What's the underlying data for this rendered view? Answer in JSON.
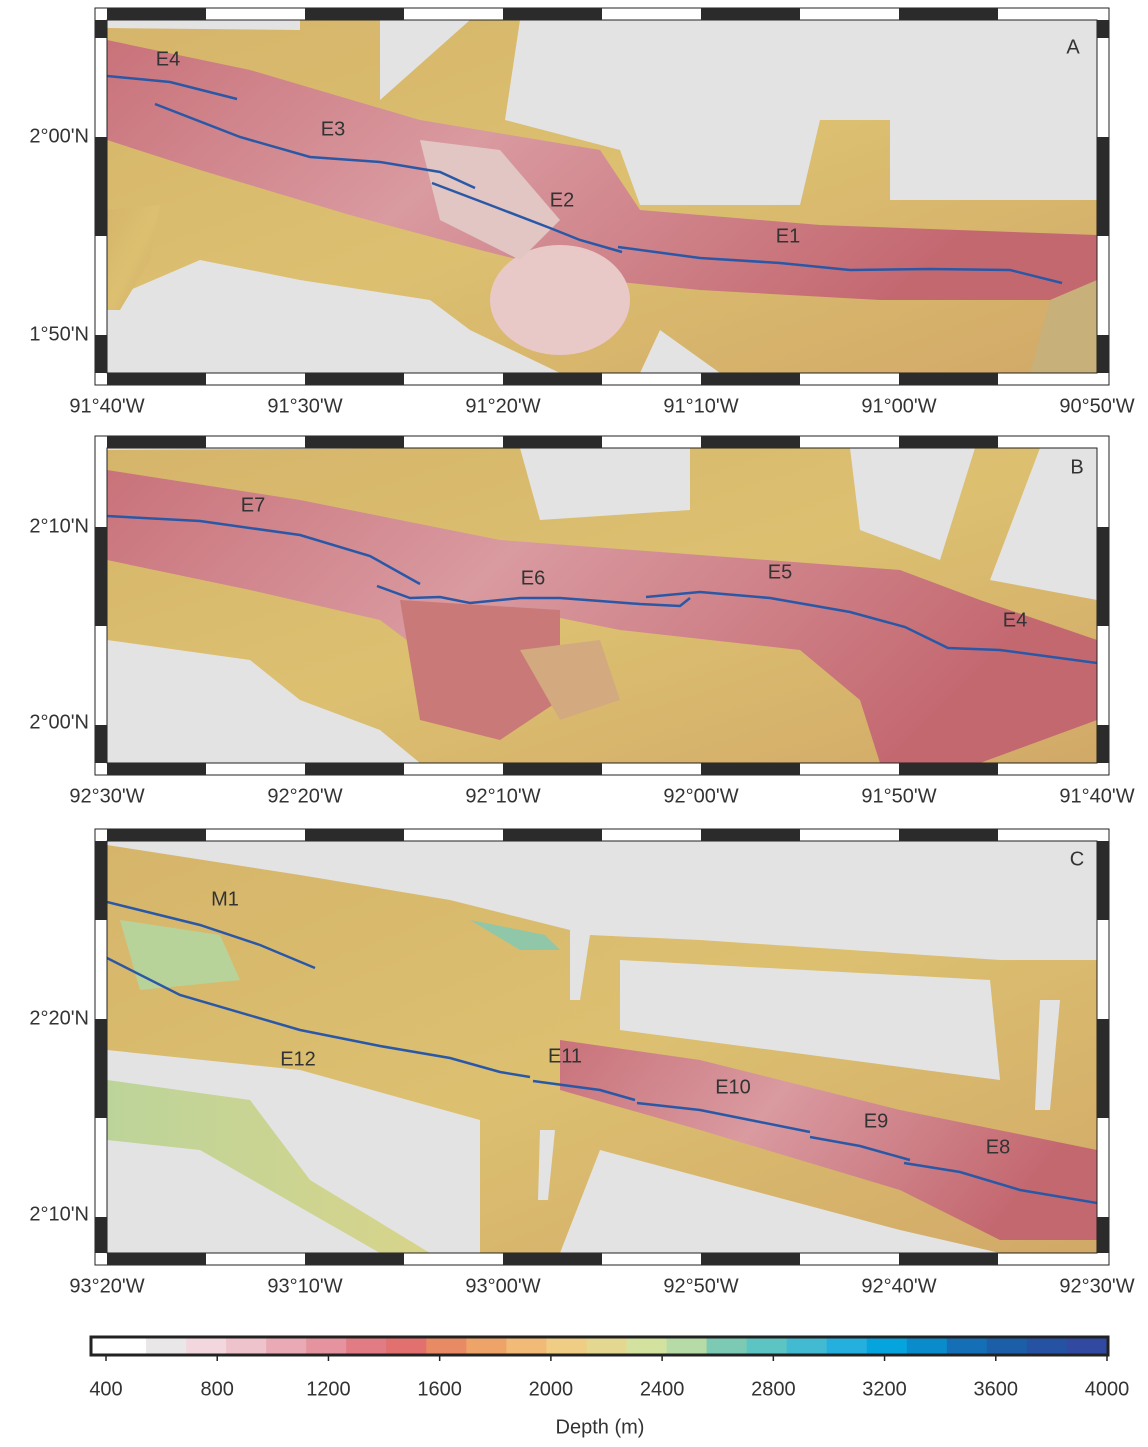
{
  "panels": [
    {
      "label": "A",
      "lon_labels": [
        "91°40'W",
        "91°30'W",
        "91°20'W",
        "91°10'W",
        "91°00'W",
        "90°50'W"
      ],
      "lat_labels": [
        "2°00'N",
        "1°50'N"
      ],
      "segments": [
        "E4",
        "E3",
        "E2",
        "E1"
      ]
    },
    {
      "label": "B",
      "lon_labels": [
        "92°30'W",
        "92°20'W",
        "92°10'W",
        "92°00'W",
        "91°50'W",
        "91°40'W"
      ],
      "lat_labels": [
        "2°10'N",
        "2°00'N"
      ],
      "segments": [
        "E7",
        "E6",
        "E5",
        "E4"
      ]
    },
    {
      "label": "C",
      "lon_labels": [
        "93°20'W",
        "93°10'W",
        "93°00'W",
        "92°50'W",
        "92°40'W",
        "92°30'W"
      ],
      "lat_labels": [
        "2°20'N",
        "2°10'N"
      ],
      "segments": [
        "M1",
        "E12",
        "E11",
        "E10",
        "E9",
        "E8"
      ]
    }
  ],
  "colorbar": {
    "title": "Depth (m)",
    "range": [
      400,
      4000
    ],
    "ticks": [
      400,
      800,
      1200,
      1600,
      2000,
      2400,
      2800,
      3200,
      3600,
      4000
    ],
    "colors": [
      "#ffffff",
      "#e9e7e8",
      "#f2d8de",
      "#efc3cb",
      "#eaaab5",
      "#e5939e",
      "#e17b84",
      "#e1706e",
      "#e88a63",
      "#eea468",
      "#f1bb77",
      "#f0cd85",
      "#e4d890",
      "#d3e29f",
      "#b6dba6",
      "#7ccab4",
      "#5cc4c2",
      "#42bad2",
      "#24afdf",
      "#06a4df",
      "#0a8bcc",
      "#146fb6",
      "#1c5ea8",
      "#2652a3",
      "#3249a1"
    ]
  }
}
